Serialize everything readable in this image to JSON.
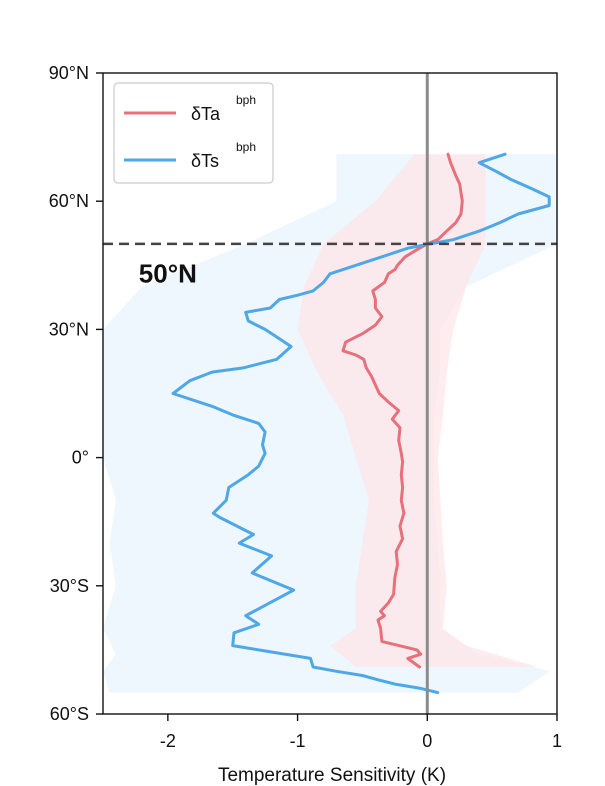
{
  "chart_data": {
    "type": "line",
    "orientation": "vertical-profile",
    "title": "",
    "xlabel": "Temperature Sensitivity (K)",
    "ylabel": "",
    "xlim": [
      -2.5,
      1.0
    ],
    "ylim": [
      -60,
      90
    ],
    "x_ticks": [
      {
        "value": -2,
        "label": "-2"
      },
      {
        "value": -1,
        "label": "-1"
      },
      {
        "value": 0,
        "label": "0"
      },
      {
        "value": 1,
        "label": "1"
      }
    ],
    "y_ticks": [
      {
        "value": -60,
        "label": "60°S"
      },
      {
        "value": -30,
        "label": "30°S"
      },
      {
        "value": 0,
        "label": "0°"
      },
      {
        "value": 30,
        "label": "30°N"
      },
      {
        "value": 60,
        "label": "60°N"
      },
      {
        "value": 90,
        "label": "90°N"
      }
    ],
    "grid": false,
    "legend_position": "top-left",
    "reference_lines": [
      {
        "axis": "x",
        "value": 0,
        "style": "solid",
        "color": "#8c8c8c"
      },
      {
        "axis": "y",
        "value": 50,
        "style": "dashed",
        "color": "#444444",
        "label": "50°N"
      }
    ],
    "series": [
      {
        "name": "δTa",
        "name_superscript": "bph",
        "color": "#e8707a",
        "band_color": "#fde6e8",
        "points": [
          [
            -0.06,
            -49
          ],
          [
            -0.15,
            -47
          ],
          [
            -0.05,
            -46
          ],
          [
            -0.08,
            -45
          ],
          [
            -0.35,
            -43
          ],
          [
            -0.36,
            -40
          ],
          [
            -0.38,
            -38
          ],
          [
            -0.33,
            -37
          ],
          [
            -0.36,
            -36
          ],
          [
            -0.3,
            -34
          ],
          [
            -0.26,
            -32
          ],
          [
            -0.25,
            -28
          ],
          [
            -0.23,
            -25
          ],
          [
            -0.24,
            -22
          ],
          [
            -0.19,
            -19
          ],
          [
            -0.21,
            -16
          ],
          [
            -0.18,
            -13
          ],
          [
            -0.2,
            -10
          ],
          [
            -0.19,
            -7
          ],
          [
            -0.2,
            -4
          ],
          [
            -0.19,
            -1
          ],
          [
            -0.2,
            1
          ],
          [
            -0.22,
            4
          ],
          [
            -0.21,
            7
          ],
          [
            -0.27,
            9
          ],
          [
            -0.22,
            11
          ],
          [
            -0.3,
            13
          ],
          [
            -0.37,
            15
          ],
          [
            -0.4,
            17
          ],
          [
            -0.43,
            19
          ],
          [
            -0.47,
            21
          ],
          [
            -0.49,
            23
          ],
          [
            -0.55,
            24
          ],
          [
            -0.65,
            25
          ],
          [
            -0.63,
            27
          ],
          [
            -0.5,
            29
          ],
          [
            -0.4,
            31
          ],
          [
            -0.35,
            33
          ],
          [
            -0.4,
            35
          ],
          [
            -0.4,
            37
          ],
          [
            -0.42,
            39
          ],
          [
            -0.33,
            41
          ],
          [
            -0.3,
            43
          ],
          [
            -0.25,
            44
          ],
          [
            -0.23,
            45
          ],
          [
            -0.17,
            47
          ],
          [
            -0.06,
            49
          ],
          [
            0.0,
            50
          ],
          [
            0.08,
            51
          ],
          [
            0.15,
            53
          ],
          [
            0.22,
            55
          ],
          [
            0.26,
            57
          ],
          [
            0.27,
            60
          ],
          [
            0.26,
            62
          ],
          [
            0.25,
            64
          ],
          [
            0.22,
            66
          ],
          [
            0.18,
            69
          ],
          [
            0.16,
            71
          ]
        ],
        "band": [
          {
            "lat": -49,
            "lo": -0.55,
            "hi": 0.85
          },
          {
            "lat": -44,
            "lo": -0.75,
            "hi": 0.3
          },
          {
            "lat": -40,
            "lo": -0.55,
            "hi": 0.12
          },
          {
            "lat": -30,
            "lo": -0.55,
            "hi": 0.15
          },
          {
            "lat": -20,
            "lo": -0.5,
            "hi": 0.12
          },
          {
            "lat": -10,
            "lo": -0.45,
            "hi": 0.1
          },
          {
            "lat": 0,
            "lo": -0.55,
            "hi": 0.08
          },
          {
            "lat": 10,
            "lo": -0.65,
            "hi": 0.12
          },
          {
            "lat": 20,
            "lo": -0.85,
            "hi": 0.15
          },
          {
            "lat": 30,
            "lo": -1.0,
            "hi": 0.2
          },
          {
            "lat": 40,
            "lo": -0.95,
            "hi": 0.3
          },
          {
            "lat": 50,
            "lo": -0.8,
            "hi": 0.45
          },
          {
            "lat": 60,
            "lo": -0.4,
            "hi": 0.45
          },
          {
            "lat": 71,
            "lo": -0.1,
            "hi": 0.45
          }
        ]
      },
      {
        "name": "δTs",
        "name_superscript": "bph",
        "color": "#4ea8e6",
        "band_color": "#e8f3fd",
        "points": [
          [
            0.08,
            -55
          ],
          [
            -0.05,
            -54
          ],
          [
            -0.25,
            -53
          ],
          [
            -0.38,
            -52
          ],
          [
            -0.5,
            -51
          ],
          [
            -0.7,
            -50
          ],
          [
            -0.88,
            -49
          ],
          [
            -0.9,
            -47
          ],
          [
            -1.5,
            -44
          ],
          [
            -1.49,
            -41
          ],
          [
            -1.3,
            -39
          ],
          [
            -1.4,
            -37
          ],
          [
            -1.03,
            -31
          ],
          [
            -1.35,
            -27
          ],
          [
            -1.2,
            -23
          ],
          [
            -1.45,
            -20
          ],
          [
            -1.34,
            -18
          ],
          [
            -1.6,
            -14
          ],
          [
            -1.65,
            -13
          ],
          [
            -1.55,
            -10
          ],
          [
            -1.53,
            -7
          ],
          [
            -1.38,
            -4
          ],
          [
            -1.3,
            -2
          ],
          [
            -1.25,
            1
          ],
          [
            -1.27,
            3
          ],
          [
            -1.25,
            6
          ],
          [
            -1.3,
            8
          ],
          [
            -1.5,
            10
          ],
          [
            -1.66,
            12
          ],
          [
            -1.96,
            15
          ],
          [
            -1.83,
            18
          ],
          [
            -1.66,
            20
          ],
          [
            -1.42,
            21
          ],
          [
            -1.16,
            23
          ],
          [
            -1.05,
            26
          ],
          [
            -1.15,
            28
          ],
          [
            -1.25,
            30
          ],
          [
            -1.38,
            32
          ],
          [
            -1.4,
            34
          ],
          [
            -1.21,
            35
          ],
          [
            -1.14,
            37
          ],
          [
            -1.0,
            38
          ],
          [
            -0.88,
            39
          ],
          [
            -0.8,
            41
          ],
          [
            -0.75,
            43
          ],
          [
            -0.55,
            45
          ],
          [
            -0.35,
            47
          ],
          [
            -0.15,
            49
          ],
          [
            0.02,
            50
          ],
          [
            0.2,
            51
          ],
          [
            0.4,
            53
          ],
          [
            0.56,
            55
          ],
          [
            0.7,
            57
          ],
          [
            0.94,
            59
          ],
          [
            0.94,
            61
          ],
          [
            0.8,
            63
          ],
          [
            0.65,
            65
          ],
          [
            0.53,
            67
          ],
          [
            0.4,
            69
          ],
          [
            0.6,
            71
          ]
        ],
        "band": [
          {
            "lat": -55,
            "lo": -2.45,
            "hi": 0.7
          },
          {
            "lat": -50,
            "lo": -2.5,
            "hi": 0.95
          },
          {
            "lat": -46,
            "lo": -2.4,
            "hi": 0.4
          },
          {
            "lat": -40,
            "lo": -2.5,
            "hi": 0.1
          },
          {
            "lat": -30,
            "lo": -2.4,
            "hi": 0.1
          },
          {
            "lat": -20,
            "lo": -2.45,
            "hi": 0.08
          },
          {
            "lat": -10,
            "lo": -2.4,
            "hi": 0.05
          },
          {
            "lat": 0,
            "lo": -2.5,
            "hi": 0.05
          },
          {
            "lat": 10,
            "lo": -2.5,
            "hi": 0.05
          },
          {
            "lat": 20,
            "lo": -2.5,
            "hi": 0.1
          },
          {
            "lat": 30,
            "lo": -2.5,
            "hi": 0.1
          },
          {
            "lat": 40,
            "lo": -2.2,
            "hi": 0.3
          },
          {
            "lat": 50,
            "lo": -1.4,
            "hi": 1.0
          },
          {
            "lat": 60,
            "lo": -0.7,
            "hi": 1.0
          },
          {
            "lat": 71,
            "lo": -0.7,
            "hi": 1.0
          }
        ]
      }
    ],
    "annotations": [
      {
        "text": "50°N",
        "x": -2.0,
        "y": 41
      }
    ]
  }
}
